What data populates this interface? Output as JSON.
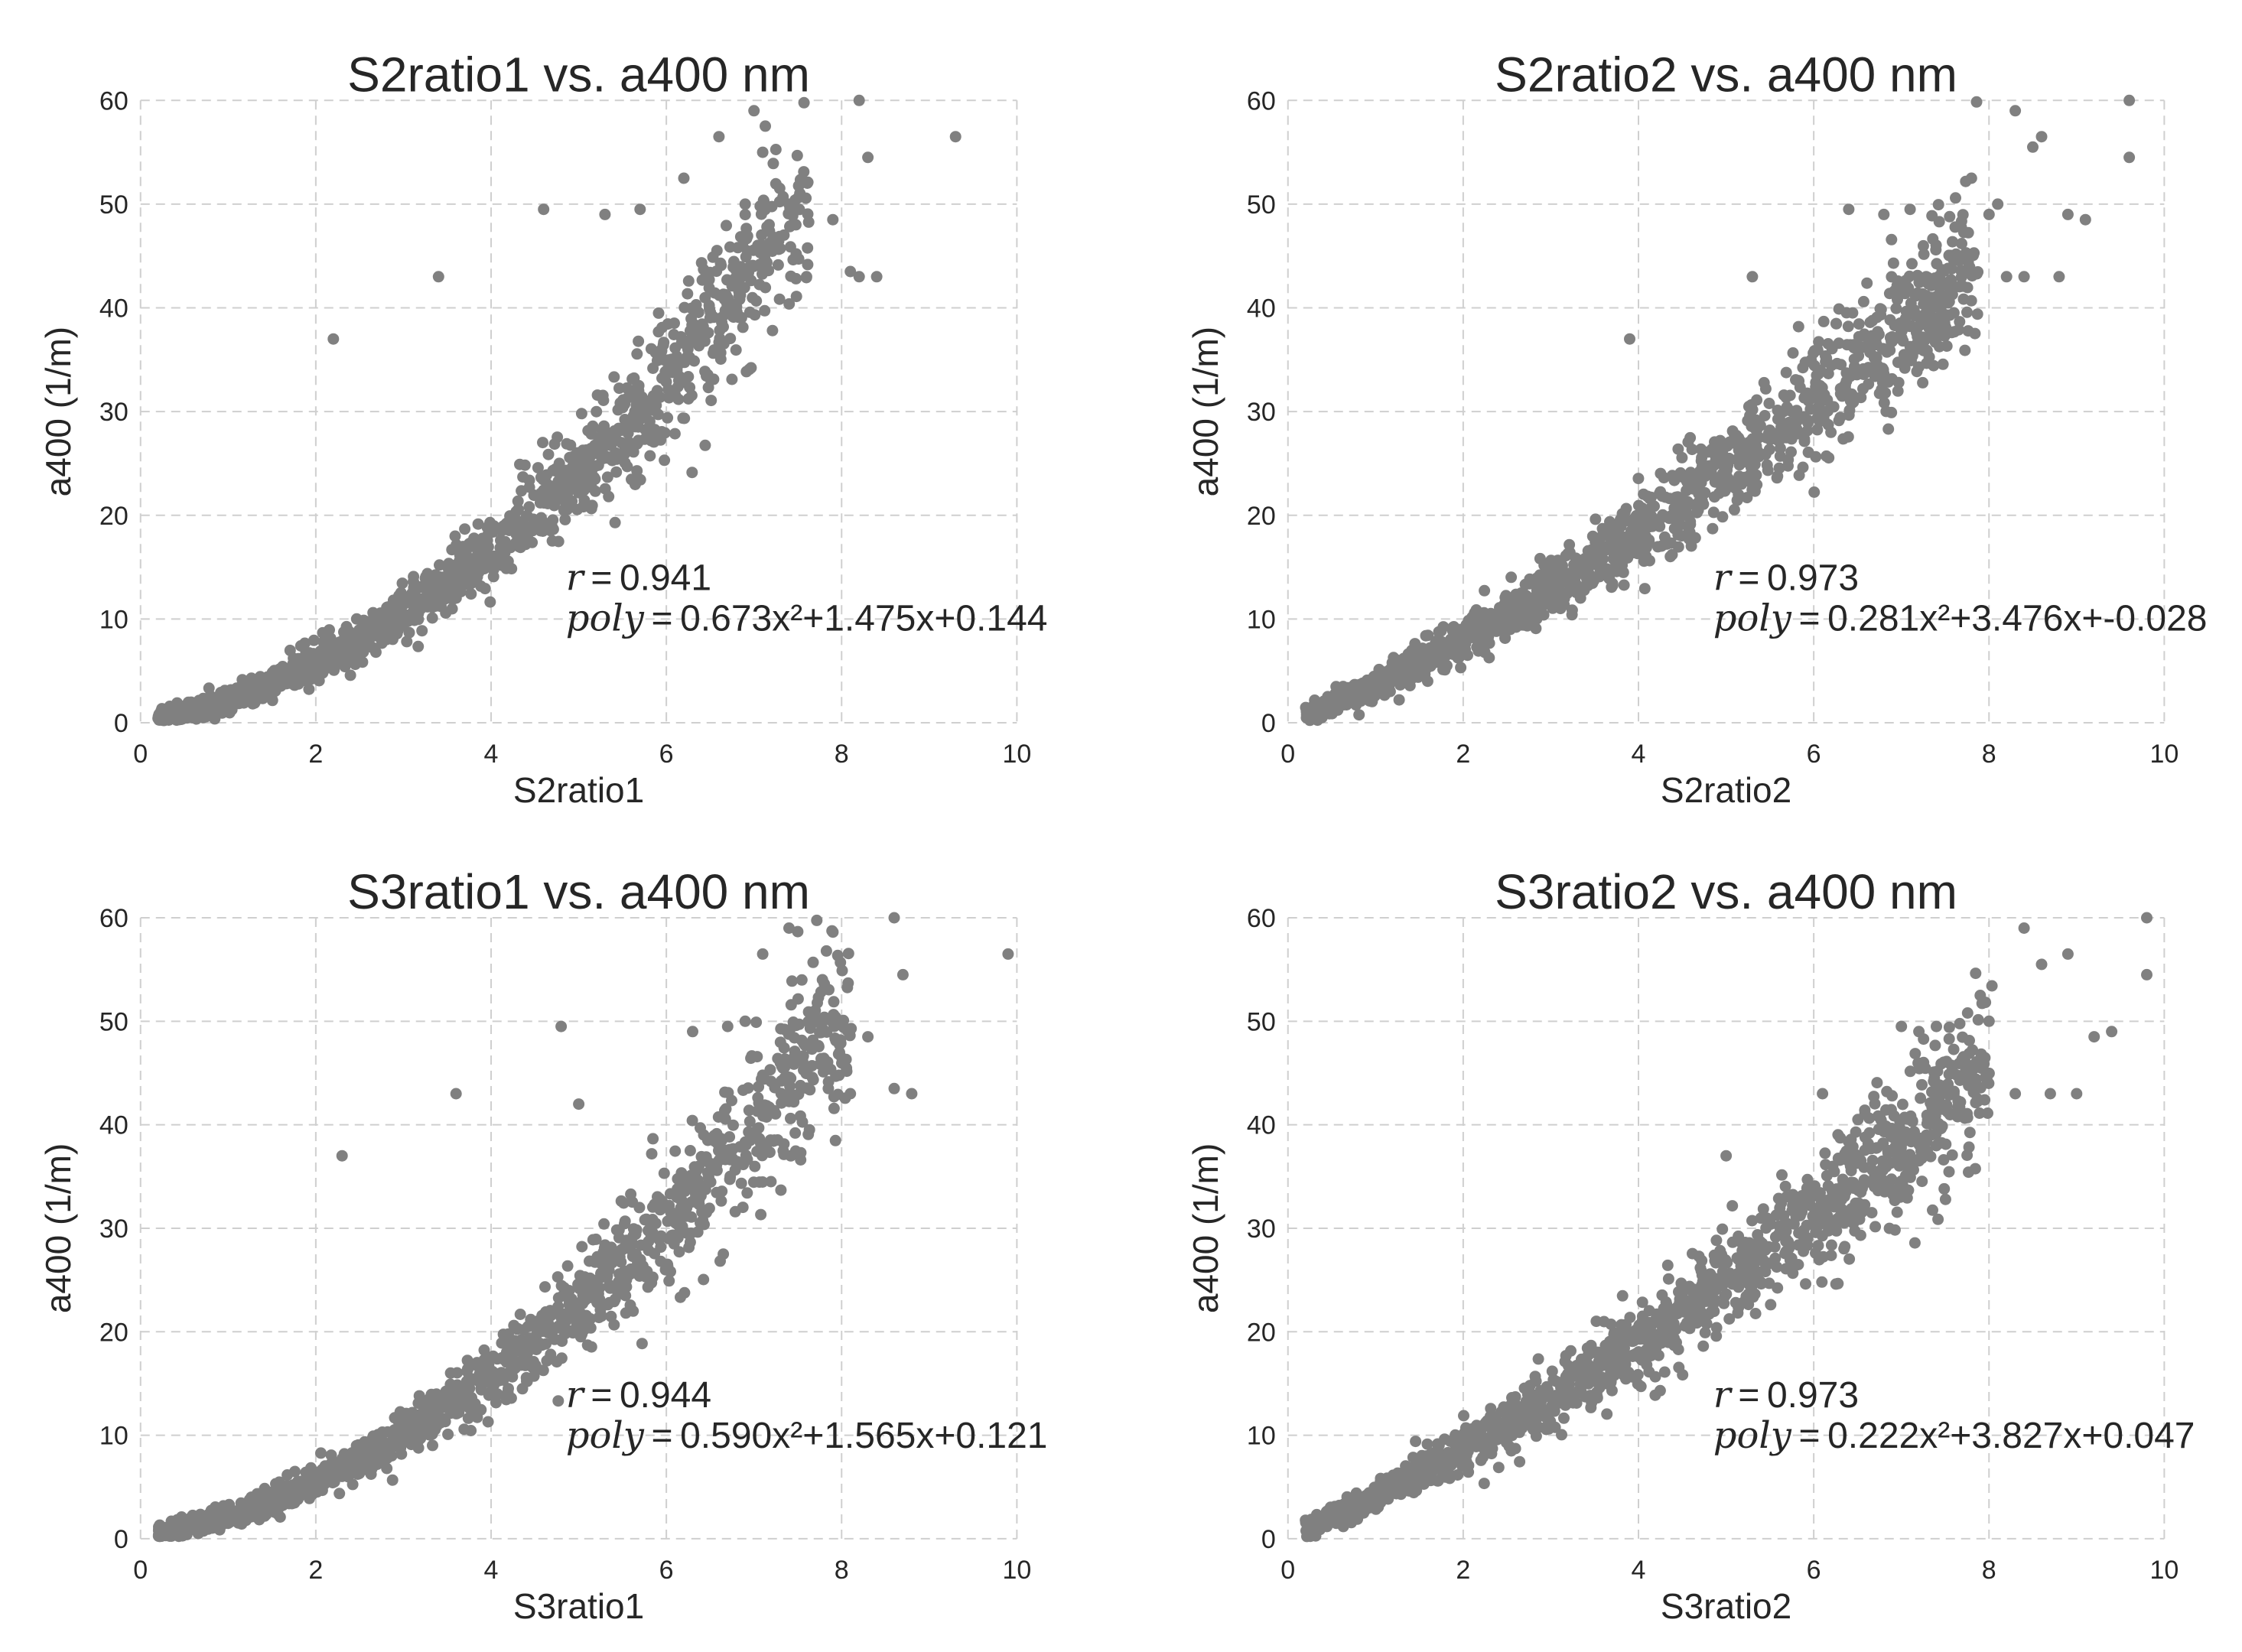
{
  "chart_data": [
    {
      "type": "scatter",
      "title": "S2ratio1 vs. a400 nm",
      "xlabel": "S2ratio1",
      "ylabel": "a400 (1/m)",
      "xlim": [
        0,
        10
      ],
      "ylim": [
        0,
        60
      ],
      "xticks": [
        0,
        2,
        4,
        6,
        8,
        10
      ],
      "yticks": [
        0,
        10,
        20,
        30,
        40,
        50,
        60
      ],
      "grid": true,
      "point_color": "#808080",
      "annotation": {
        "r_label": "r",
        "r_value": "0.941",
        "poly_label": "poly",
        "poly_value": "0.673x²+1.475x+0.144"
      },
      "fit": {
        "a": 0.673,
        "b": 1.475,
        "c": 0.144
      },
      "outliers": [
        [
          2.2,
          37
        ],
        [
          3.4,
          43
        ],
        [
          4.6,
          49.5
        ],
        [
          5.3,
          49
        ],
        [
          5.7,
          49.5
        ],
        [
          6.2,
          52.5
        ],
        [
          6.6,
          56.5
        ],
        [
          7.0,
          59
        ],
        [
          7.1,
          55
        ],
        [
          7.4,
          50
        ],
        [
          7.6,
          43
        ],
        [
          7.9,
          48.5
        ],
        [
          8.1,
          43.5
        ],
        [
          8.2,
          43
        ],
        [
          8.3,
          54.5
        ],
        [
          8.4,
          43
        ],
        [
          9.3,
          56.5
        ],
        [
          8.2,
          60
        ],
        [
          6.9,
          50
        ]
      ]
    },
    {
      "type": "scatter",
      "title": "S2ratio2 vs. a400 nm",
      "xlabel": "S2ratio2",
      "ylabel": "a400 (1/m)",
      "xlim": [
        0,
        10
      ],
      "ylim": [
        0,
        60
      ],
      "xticks": [
        0,
        2,
        4,
        6,
        8,
        10
      ],
      "yticks": [
        0,
        10,
        20,
        30,
        40,
        50,
        60
      ],
      "grid": true,
      "point_color": "#808080",
      "annotation": {
        "r_label": "r",
        "r_value": "0.973",
        "poly_label": "poly",
        "poly_value": "0.281x²+3.476x+-0.028"
      },
      "fit": {
        "a": 0.281,
        "b": 3.476,
        "c": -0.028
      },
      "outliers": [
        [
          3.9,
          37
        ],
        [
          5.3,
          43
        ],
        [
          6.4,
          49.5
        ],
        [
          6.8,
          49
        ],
        [
          7.1,
          49.5
        ],
        [
          7.8,
          52.5
        ],
        [
          8.1,
          50
        ],
        [
          8.2,
          43
        ],
        [
          8.3,
          59
        ],
        [
          8.4,
          43
        ],
        [
          8.5,
          55.5
        ],
        [
          8.6,
          56.5
        ],
        [
          8.8,
          43
        ],
        [
          8.9,
          49
        ],
        [
          9.1,
          48.5
        ],
        [
          9.6,
          54.5
        ],
        [
          9.6,
          60
        ],
        [
          8.0,
          49
        ]
      ]
    },
    {
      "type": "scatter",
      "title": "S3ratio1 vs. a400 nm",
      "xlabel": "S3ratio1",
      "ylabel": "a400 (1/m)",
      "xlim": [
        0,
        10
      ],
      "ylim": [
        0,
        60
      ],
      "xticks": [
        0,
        2,
        4,
        6,
        8,
        10
      ],
      "yticks": [
        0,
        10,
        20,
        30,
        40,
        50,
        60
      ],
      "grid": true,
      "point_color": "#808080",
      "annotation": {
        "r_label": "r",
        "r_value": "0.944",
        "poly_label": "poly",
        "poly_value": "0.590x²+1.565x+0.121"
      },
      "fit": {
        "a": 0.59,
        "b": 1.565,
        "c": 0.121
      },
      "outliers": [
        [
          2.3,
          37
        ],
        [
          3.6,
          43
        ],
        [
          4.8,
          49.5
        ],
        [
          5.0,
          42
        ],
        [
          6.3,
          49
        ],
        [
          6.7,
          49.5
        ],
        [
          6.9,
          50
        ],
        [
          7.1,
          56.5
        ],
        [
          7.3,
          46
        ],
        [
          7.4,
          59
        ],
        [
          7.7,
          50
        ],
        [
          8.1,
          43
        ],
        [
          8.3,
          48.5
        ],
        [
          8.6,
          43.5
        ],
        [
          8.6,
          60
        ],
        [
          8.7,
          54.5
        ],
        [
          8.8,
          43
        ],
        [
          9.9,
          56.5
        ]
      ]
    },
    {
      "type": "scatter",
      "title": "S3ratio2 vs. a400 nm",
      "xlabel": "S3ratio2",
      "ylabel": "a400 (1/m)",
      "xlim": [
        0,
        10
      ],
      "ylim": [
        0,
        60
      ],
      "xticks": [
        0,
        2,
        4,
        6,
        8,
        10
      ],
      "yticks": [
        0,
        10,
        20,
        30,
        40,
        50,
        60
      ],
      "grid": true,
      "point_color": "#808080",
      "annotation": {
        "r_label": "r",
        "r_value": "0.973",
        "poly_label": "poly",
        "poly_value": "0.222x²+3.827x+0.047"
      },
      "fit": {
        "a": 0.222,
        "b": 3.827,
        "c": 0.047
      },
      "outliers": [
        [
          5.0,
          37
        ],
        [
          6.1,
          43
        ],
        [
          7.0,
          49.5
        ],
        [
          7.2,
          49
        ],
        [
          7.4,
          49.5
        ],
        [
          7.9,
          52.5
        ],
        [
          8.0,
          50
        ],
        [
          8.3,
          43
        ],
        [
          8.4,
          59
        ],
        [
          8.6,
          55.5
        ],
        [
          8.7,
          43
        ],
        [
          8.9,
          56.5
        ],
        [
          9.0,
          43
        ],
        [
          9.2,
          48.5
        ],
        [
          9.4,
          49
        ],
        [
          9.8,
          54.5
        ],
        [
          9.8,
          60
        ],
        [
          7.6,
          43
        ]
      ]
    }
  ]
}
